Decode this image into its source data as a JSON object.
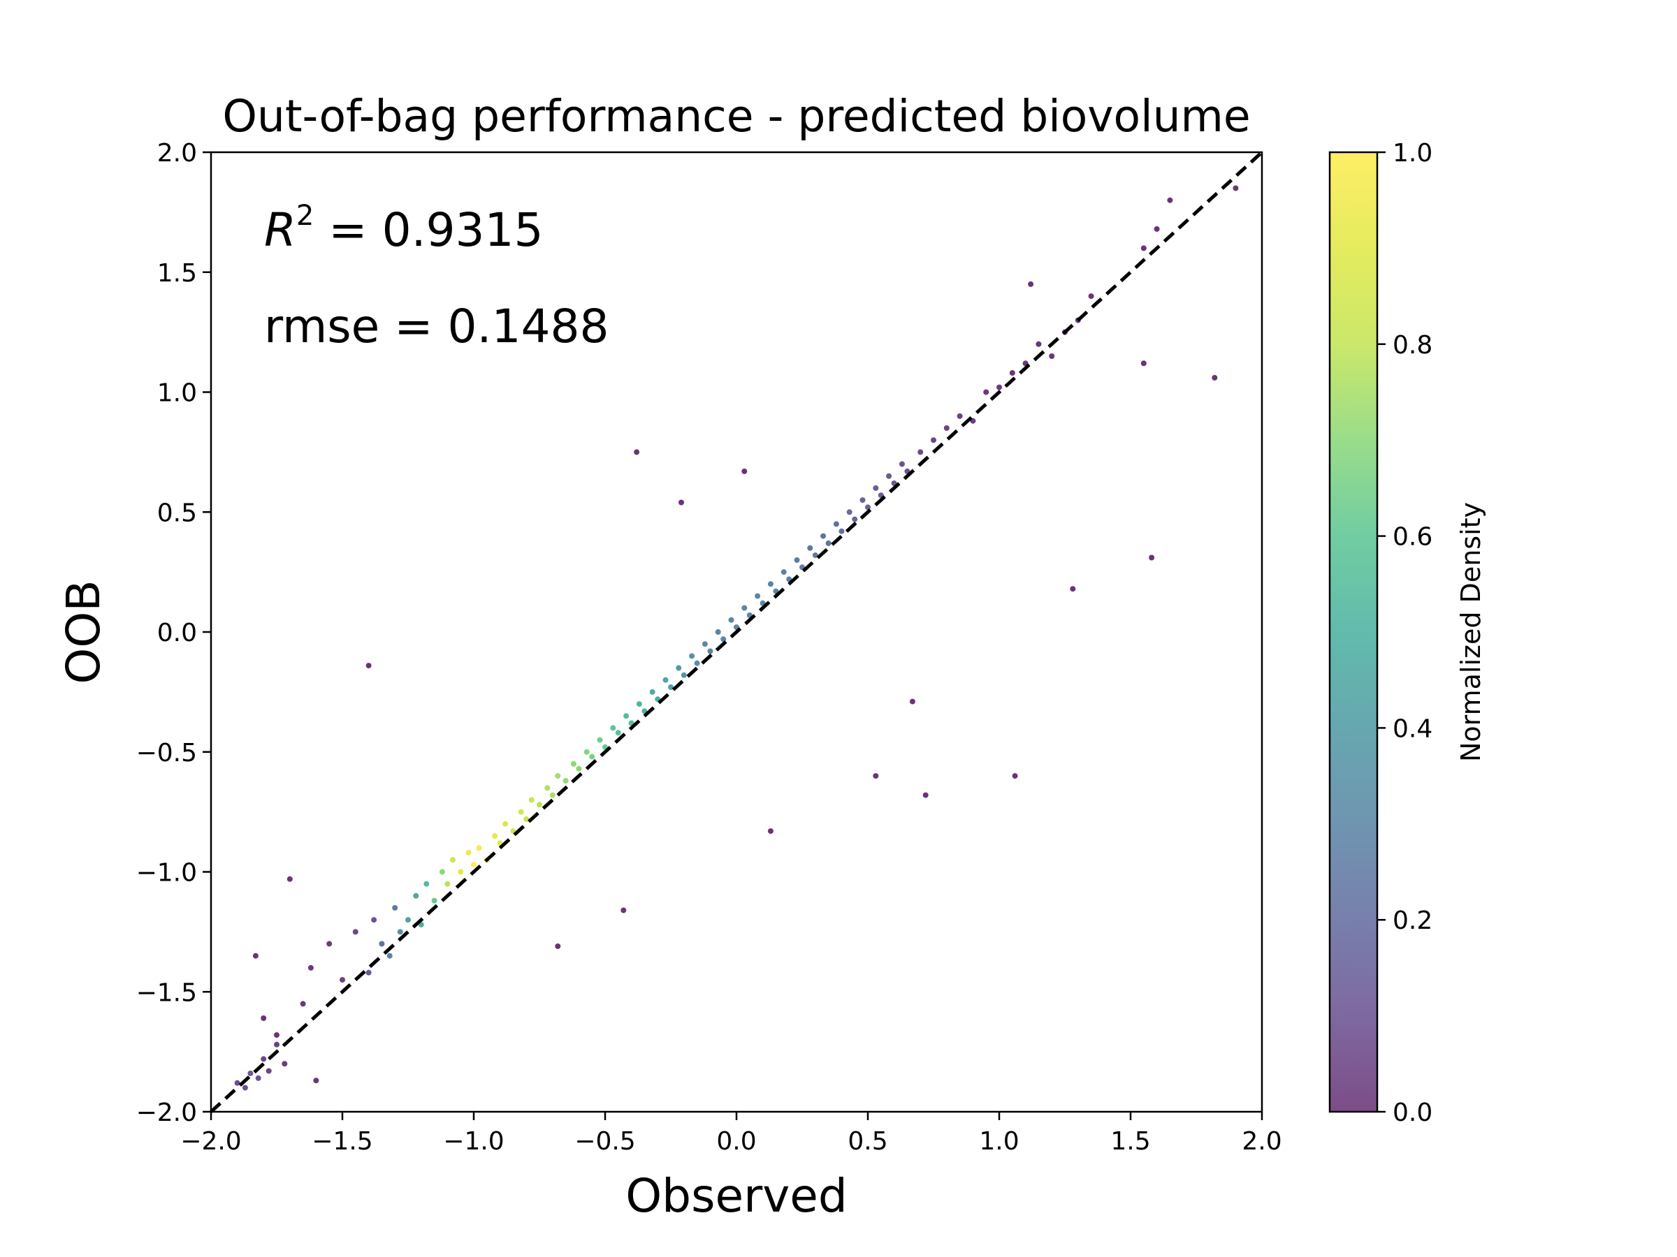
{
  "chart_data": {
    "type": "scatter",
    "title": "Out-of-bag performance - predicted biovolume",
    "xlabel": "Observed",
    "ylabel": "OOB",
    "xlim": [
      -2.0,
      2.0
    ],
    "ylim": [
      -2.0,
      2.0
    ],
    "x_ticks": [
      -2.0,
      -1.5,
      -1.0,
      -0.5,
      0.0,
      0.5,
      1.0,
      1.5,
      2.0
    ],
    "y_ticks": [
      -2.0,
      -1.5,
      -1.0,
      -0.5,
      0.0,
      0.5,
      1.0,
      1.5,
      2.0
    ],
    "x_tick_labels": [
      "−2.0",
      "−1.5",
      "−1.0",
      "−0.5",
      "0.0",
      "0.5",
      "1.0",
      "1.5",
      "2.0"
    ],
    "y_tick_labels": [
      "−2.0",
      "−1.5",
      "−1.0",
      "−0.5",
      "0.0",
      "0.5",
      "1.0",
      "1.5",
      "2.0"
    ],
    "grid": false,
    "annotations": [
      {
        "name": "r2",
        "label": "R",
        "superscript": "2",
        "text": " = 0.9315"
      },
      {
        "name": "rmse",
        "text": "rmse = 0.1488"
      }
    ],
    "reference_line": {
      "style": "dashed",
      "color": "#000000",
      "from": [
        -2.0,
        -2.0
      ],
      "to": [
        2.0,
        2.0
      ]
    },
    "colorbar": {
      "label": "Normalized Density",
      "range": [
        0.0,
        1.0
      ],
      "ticks": [
        0.0,
        0.2,
        0.4,
        0.6,
        0.8,
        1.0
      ],
      "tick_labels": [
        "0.0",
        "0.2",
        "0.4",
        "0.6",
        "0.8",
        "1.0"
      ],
      "colormap": "viridis",
      "alpha": 0.7
    },
    "point_style": {
      "colormap": "viridis",
      "alpha": 0.8
    },
    "points": [
      {
        "x": -1.9,
        "y": -1.88,
        "d": 0.08
      },
      {
        "x": -1.87,
        "y": -1.9,
        "d": 0.08
      },
      {
        "x": -1.85,
        "y": -1.84,
        "d": 0.12
      },
      {
        "x": -1.82,
        "y": -1.86,
        "d": 0.1
      },
      {
        "x": -1.8,
        "y": -1.78,
        "d": 0.06
      },
      {
        "x": -1.78,
        "y": -1.83,
        "d": 0.05
      },
      {
        "x": -1.75,
        "y": -1.72,
        "d": 0.04
      },
      {
        "x": -1.72,
        "y": -1.8,
        "d": 0.03
      },
      {
        "x": -1.65,
        "y": -1.55,
        "d": 0.02
      },
      {
        "x": -1.6,
        "y": -1.87,
        "d": 0.01
      },
      {
        "x": -1.7,
        "y": -1.03,
        "d": 0.01
      },
      {
        "x": -1.62,
        "y": -1.4,
        "d": 0.02
      },
      {
        "x": -1.55,
        "y": -1.3,
        "d": 0.03
      },
      {
        "x": -1.5,
        "y": -1.45,
        "d": 0.04
      },
      {
        "x": -1.45,
        "y": -1.25,
        "d": 0.06
      },
      {
        "x": -1.4,
        "y": -1.42,
        "d": 0.12
      },
      {
        "x": -1.38,
        "y": -1.2,
        "d": 0.1
      },
      {
        "x": -1.35,
        "y": -1.3,
        "d": 0.22
      },
      {
        "x": -1.32,
        "y": -1.35,
        "d": 0.28
      },
      {
        "x": -1.3,
        "y": -1.15,
        "d": 0.25
      },
      {
        "x": -1.28,
        "y": -1.25,
        "d": 0.35
      },
      {
        "x": -1.25,
        "y": -1.2,
        "d": 0.42
      },
      {
        "x": -1.22,
        "y": -1.1,
        "d": 0.45
      },
      {
        "x": -1.2,
        "y": -1.22,
        "d": 0.5
      },
      {
        "x": -1.18,
        "y": -1.05,
        "d": 0.55
      },
      {
        "x": -1.15,
        "y": -1.12,
        "d": 0.62
      },
      {
        "x": -1.12,
        "y": -1.0,
        "d": 0.7
      },
      {
        "x": -1.1,
        "y": -1.05,
        "d": 0.78
      },
      {
        "x": -1.08,
        "y": -0.95,
        "d": 0.82
      },
      {
        "x": -1.05,
        "y": -1.0,
        "d": 0.9
      },
      {
        "x": -1.02,
        "y": -0.92,
        "d": 0.95
      },
      {
        "x": -1.0,
        "y": -0.97,
        "d": 1.0
      },
      {
        "x": -0.98,
        "y": -0.9,
        "d": 0.98
      },
      {
        "x": -0.95,
        "y": -0.95,
        "d": 0.96
      },
      {
        "x": -0.92,
        "y": -0.85,
        "d": 0.92
      },
      {
        "x": -0.9,
        "y": -0.88,
        "d": 0.9
      },
      {
        "x": -0.88,
        "y": -0.8,
        "d": 0.88
      },
      {
        "x": -0.85,
        "y": -0.83,
        "d": 0.86
      },
      {
        "x": -0.82,
        "y": -0.75,
        "d": 0.84
      },
      {
        "x": -0.8,
        "y": -0.78,
        "d": 0.82
      },
      {
        "x": -0.78,
        "y": -0.7,
        "d": 0.8
      },
      {
        "x": -0.75,
        "y": -0.72,
        "d": 0.78
      },
      {
        "x": -0.72,
        "y": -0.65,
        "d": 0.76
      },
      {
        "x": -0.7,
        "y": -0.68,
        "d": 0.75
      },
      {
        "x": -0.68,
        "y": -0.6,
        "d": 0.74
      },
      {
        "x": -0.65,
        "y": -0.62,
        "d": 0.72
      },
      {
        "x": -0.62,
        "y": -0.55,
        "d": 0.7
      },
      {
        "x": -0.6,
        "y": -0.57,
        "d": 0.7
      },
      {
        "x": -0.57,
        "y": -0.5,
        "d": 0.68
      },
      {
        "x": -0.55,
        "y": -0.52,
        "d": 0.66
      },
      {
        "x": -0.52,
        "y": -0.45,
        "d": 0.64
      },
      {
        "x": -0.5,
        "y": -0.48,
        "d": 0.62
      },
      {
        "x": -0.47,
        "y": -0.4,
        "d": 0.6
      },
      {
        "x": -0.45,
        "y": -0.42,
        "d": 0.58
      },
      {
        "x": -0.42,
        "y": -0.35,
        "d": 0.56
      },
      {
        "x": -0.4,
        "y": -0.38,
        "d": 0.55
      },
      {
        "x": -0.37,
        "y": -0.3,
        "d": 0.52
      },
      {
        "x": -0.35,
        "y": -0.33,
        "d": 0.5
      },
      {
        "x": -0.32,
        "y": -0.25,
        "d": 0.48
      },
      {
        "x": -0.3,
        "y": -0.28,
        "d": 0.46
      },
      {
        "x": -0.27,
        "y": -0.2,
        "d": 0.44
      },
      {
        "x": -0.25,
        "y": -0.23,
        "d": 0.42
      },
      {
        "x": -0.22,
        "y": -0.15,
        "d": 0.4
      },
      {
        "x": -0.2,
        "y": -0.18,
        "d": 0.38
      },
      {
        "x": -0.17,
        "y": -0.1,
        "d": 0.36
      },
      {
        "x": -0.15,
        "y": -0.13,
        "d": 0.34
      },
      {
        "x": -0.12,
        "y": -0.05,
        "d": 0.32
      },
      {
        "x": -0.1,
        "y": -0.08,
        "d": 0.3
      },
      {
        "x": -0.07,
        "y": 0.0,
        "d": 0.3
      },
      {
        "x": -0.05,
        "y": -0.03,
        "d": 0.3
      },
      {
        "x": -0.02,
        "y": 0.05,
        "d": 0.3
      },
      {
        "x": 0.0,
        "y": 0.02,
        "d": 0.3
      },
      {
        "x": 0.03,
        "y": 0.1,
        "d": 0.3
      },
      {
        "x": 0.05,
        "y": 0.07,
        "d": 0.3
      },
      {
        "x": 0.08,
        "y": 0.15,
        "d": 0.3
      },
      {
        "x": 0.1,
        "y": 0.12,
        "d": 0.3
      },
      {
        "x": 0.13,
        "y": 0.2,
        "d": 0.3
      },
      {
        "x": 0.15,
        "y": 0.17,
        "d": 0.3
      },
      {
        "x": 0.18,
        "y": 0.25,
        "d": 0.28
      },
      {
        "x": 0.2,
        "y": 0.22,
        "d": 0.28
      },
      {
        "x": 0.23,
        "y": 0.3,
        "d": 0.26
      },
      {
        "x": 0.25,
        "y": 0.27,
        "d": 0.26
      },
      {
        "x": 0.28,
        "y": 0.35,
        "d": 0.24
      },
      {
        "x": 0.3,
        "y": 0.32,
        "d": 0.24
      },
      {
        "x": 0.33,
        "y": 0.4,
        "d": 0.22
      },
      {
        "x": 0.35,
        "y": 0.37,
        "d": 0.22
      },
      {
        "x": 0.38,
        "y": 0.45,
        "d": 0.2
      },
      {
        "x": 0.4,
        "y": 0.42,
        "d": 0.2
      },
      {
        "x": 0.43,
        "y": 0.5,
        "d": 0.18
      },
      {
        "x": 0.45,
        "y": 0.47,
        "d": 0.17
      },
      {
        "x": 0.48,
        "y": 0.55,
        "d": 0.16
      },
      {
        "x": 0.5,
        "y": 0.52,
        "d": 0.15
      },
      {
        "x": 0.53,
        "y": 0.6,
        "d": 0.14
      },
      {
        "x": 0.55,
        "y": 0.57,
        "d": 0.13
      },
      {
        "x": 0.58,
        "y": 0.65,
        "d": 0.12
      },
      {
        "x": 0.6,
        "y": 0.62,
        "d": 0.11
      },
      {
        "x": 0.63,
        "y": 0.7,
        "d": 0.1
      },
      {
        "x": 0.65,
        "y": 0.67,
        "d": 0.09
      },
      {
        "x": 0.7,
        "y": 0.75,
        "d": 0.07
      },
      {
        "x": 0.75,
        "y": 0.8,
        "d": 0.06
      },
      {
        "x": 0.8,
        "y": 0.85,
        "d": 0.05
      },
      {
        "x": 0.85,
        "y": 0.9,
        "d": 0.04
      },
      {
        "x": 0.9,
        "y": 0.88,
        "d": 0.03
      },
      {
        "x": 0.95,
        "y": 1.0,
        "d": 0.02
      },
      {
        "x": 1.0,
        "y": 1.02,
        "d": 0.02
      },
      {
        "x": 1.05,
        "y": 1.08,
        "d": 0.01
      },
      {
        "x": 1.1,
        "y": 1.12,
        "d": 0.01
      },
      {
        "x": 1.15,
        "y": 1.2,
        "d": 0.01
      },
      {
        "x": 1.2,
        "y": 1.15,
        "d": 0.01
      },
      {
        "x": 1.25,
        "y": 1.25,
        "d": 0.01
      },
      {
        "x": 1.3,
        "y": 1.3,
        "d": 0.01
      },
      {
        "x": 1.35,
        "y": 1.4,
        "d": 0.01
      },
      {
        "x": 1.6,
        "y": 1.68,
        "d": 0.0
      },
      {
        "x": 1.65,
        "y": 1.8,
        "d": 0.0
      },
      {
        "x": 1.9,
        "y": 1.85,
        "d": 0.0
      },
      {
        "x": 1.82,
        "y": 1.06,
        "d": 0.0
      },
      {
        "x": 1.58,
        "y": 0.31,
        "d": 0.0
      },
      {
        "x": 1.28,
        "y": 0.18,
        "d": 0.0
      },
      {
        "x": 1.06,
        "y": -0.6,
        "d": 0.0
      },
      {
        "x": 0.72,
        "y": -0.68,
        "d": 0.0
      },
      {
        "x": -0.38,
        "y": 0.75,
        "d": 0.0
      },
      {
        "x": -1.4,
        "y": -0.14,
        "d": 0.0
      },
      {
        "x": 0.03,
        "y": 0.67,
        "d": 0.0
      },
      {
        "x": -0.21,
        "y": 0.54,
        "d": 0.0
      },
      {
        "x": 0.13,
        "y": -0.83,
        "d": 0.0
      },
      {
        "x": -0.43,
        "y": -1.16,
        "d": 0.0
      },
      {
        "x": -0.68,
        "y": -1.31,
        "d": 0.0
      },
      {
        "x": 0.67,
        "y": -0.29,
        "d": 0.0
      },
      {
        "x": 0.53,
        "y": -0.6,
        "d": 0.0
      },
      {
        "x": 1.12,
        "y": 1.45,
        "d": 0.0
      },
      {
        "x": 1.55,
        "y": 1.6,
        "d": 0.0
      },
      {
        "x": 1.55,
        "y": 1.12,
        "d": 0.0
      },
      {
        "x": -1.75,
        "y": -1.68,
        "d": 0.0
      },
      {
        "x": -1.8,
        "y": -1.61,
        "d": 0.0
      },
      {
        "x": -1.83,
        "y": -1.35,
        "d": 0.0
      }
    ]
  }
}
